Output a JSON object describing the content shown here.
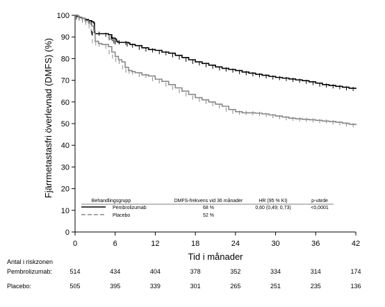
{
  "chart_data": {
    "type": "line",
    "title": "",
    "xlabel": "Tid i månader",
    "ylabel": "Fjärrmetastasfri överlevnad (DMFS) (%)",
    "xlim": [
      0,
      42
    ],
    "ylim": [
      0,
      100
    ],
    "xticks": [
      "0",
      "6",
      "12",
      "18",
      "24",
      "30",
      "36",
      "42"
    ],
    "yticks": [
      "0",
      "10",
      "20",
      "30",
      "40",
      "50",
      "60",
      "70",
      "80",
      "90",
      "100"
    ],
    "grid": false,
    "legend_position": "bottom-left (inside plot)",
    "legend": {
      "headers": {
        "group": "Behandlingsgrupp",
        "rate": "DMFS-frekvens vid 36 månader",
        "hr": "HR (95 % KI)",
        "p": "p-värde"
      },
      "rows": [
        {
          "name": "Pembrolizumab",
          "rate": "68 %",
          "hr": "0,60 (0,49; 0,73)",
          "p": "<0,0001"
        },
        {
          "name": "Placebo",
          "rate": "52 %",
          "hr": "",
          "p": ""
        }
      ]
    },
    "series": [
      {
        "name": "Pembrolizumab",
        "color": "#000000",
        "style": "solid",
        "x": [
          0,
          0.3,
          0.6,
          1,
          1.5,
          2,
          2.5,
          2.8,
          2.9,
          3,
          4,
          5,
          5.5,
          5.8,
          6,
          6.2,
          6.4,
          7,
          8,
          8.2,
          9,
          10,
          11,
          12,
          13,
          14,
          15,
          16,
          17,
          18,
          19,
          20,
          21,
          22,
          23,
          24,
          25,
          26,
          27,
          28,
          29,
          30,
          31,
          32,
          33,
          34,
          35,
          36,
          37,
          38,
          39,
          40,
          41,
          42
        ],
        "y": [
          100,
          99.5,
          99,
          98.6,
          98,
          97.5,
          97,
          96.5,
          92,
          91.5,
          91.5,
          91,
          89.5,
          89.5,
          89,
          88,
          87.5,
          87.5,
          87.2,
          86.5,
          86,
          85,
          84.2,
          83.8,
          83,
          82.5,
          81.5,
          80.5,
          79.5,
          78.5,
          77.8,
          77,
          76.2,
          75.5,
          75,
          74.5,
          73.8,
          73.3,
          72.8,
          72.3,
          71.8,
          71.3,
          71,
          70.6,
          70.2,
          69.8,
          69.3,
          68.7,
          68,
          67.6,
          67.2,
          66.8,
          66.3,
          66
        ]
      },
      {
        "name": "Placebo",
        "color": "#888888",
        "style": "solid",
        "x": [
          0,
          0.5,
          1,
          1.5,
          2,
          2.5,
          2.8,
          3,
          3.5,
          4,
          5,
          5.5,
          6,
          6.5,
          7,
          7.5,
          8,
          8.5,
          9,
          10,
          11,
          12,
          13,
          14,
          15,
          16,
          17,
          18,
          19,
          20,
          21,
          22,
          23,
          24,
          25,
          26,
          27,
          28,
          29,
          30,
          31,
          32,
          33,
          34,
          35,
          36,
          37,
          38,
          39,
          40,
          41,
          42
        ],
        "y": [
          100,
          99.2,
          98.5,
          97.5,
          96.5,
          95,
          93,
          88,
          87,
          86.5,
          85.5,
          83,
          81,
          79.5,
          78.5,
          76,
          74.5,
          74,
          73.5,
          72.5,
          72,
          70.5,
          69.5,
          68,
          66.5,
          65,
          63.5,
          62,
          61,
          60,
          59,
          58,
          56.5,
          55.5,
          55,
          55,
          54.8,
          54.5,
          54,
          53.5,
          53,
          52.5,
          52.2,
          52,
          51.8,
          51.5,
          51.2,
          51,
          50.6,
          50.2,
          49.7,
          49.3
        ]
      }
    ]
  },
  "risk_table": {
    "title": "Antal i riskzonen",
    "rows": [
      {
        "label": "Pembrolizumab:",
        "values": [
          "514",
          "434",
          "404",
          "378",
          "352",
          "334",
          "314",
          "174"
        ]
      },
      {
        "label": "Placebo:",
        "values": [
          "505",
          "395",
          "339",
          "301",
          "265",
          "251",
          "235",
          "136"
        ]
      }
    ]
  }
}
